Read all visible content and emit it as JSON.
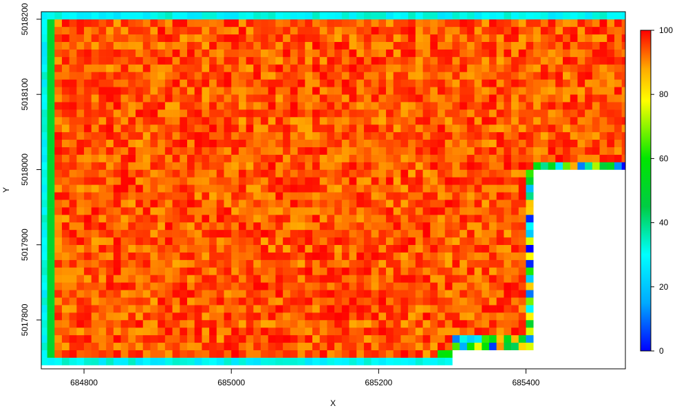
{
  "chart_data": {
    "type": "heatmap",
    "title": "",
    "xlabel": "X",
    "ylabel": "Y",
    "xlim": [
      684742,
      685535
    ],
    "ylim": [
      5017735,
      5018210
    ],
    "x_ticks": [
      684800,
      685000,
      685200,
      685400
    ],
    "y_ticks": [
      5017800,
      5017900,
      5018000,
      5018100,
      5018200
    ],
    "colorbar": {
      "min": 0,
      "max": 100,
      "ticks": [
        0,
        20,
        40,
        60,
        80,
        100
      ],
      "palette": "rainbow",
      "colors": [
        "#0000ff",
        "#00aaff",
        "#00ffff",
        "#00cc44",
        "#00e600",
        "#ffff00",
        "#ffaa00",
        "#ff0000"
      ]
    },
    "grid": false,
    "legend_position": "right",
    "cell_size": 10,
    "raster_extent": {
      "xmin": 684740,
      "xmax": 685540,
      "ymin": 5017740,
      "ymax": 5018210
    },
    "value_pattern": {
      "interior": 100,
      "boundary_ring": 30,
      "boundary_fringe": 50,
      "outer_fringe": 0
    }
  }
}
